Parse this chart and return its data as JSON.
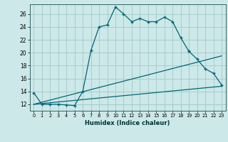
{
  "title": "",
  "xlabel": "Humidex (Indice chaleur)",
  "bg_color": "#cce8e8",
  "grid_color": "#aacccc",
  "line_color": "#006677",
  "xlim": [
    -0.5,
    23.5
  ],
  "ylim": [
    11.0,
    27.5
  ],
  "xticks": [
    0,
    1,
    2,
    3,
    4,
    5,
    6,
    7,
    8,
    9,
    10,
    11,
    12,
    13,
    14,
    15,
    16,
    17,
    18,
    19,
    20,
    21,
    22,
    23
  ],
  "yticks": [
    12,
    14,
    16,
    18,
    20,
    22,
    24,
    26
  ],
  "series": [
    {
      "x": [
        0,
        1,
        2,
        3,
        4,
        5,
        6,
        7,
        8,
        9,
        10,
        11,
        12,
        13,
        14,
        15,
        16,
        17,
        18,
        19
      ],
      "y": [
        13.8,
        12.0,
        12.0,
        12.0,
        11.9,
        11.8,
        14.0,
        20.3,
        24.0,
        24.3,
        27.1,
        26.0,
        24.8,
        25.3,
        24.8,
        24.8,
        25.5,
        24.8,
        22.3,
        20.2
      ]
    },
    {
      "x": [
        19,
        20,
        21,
        22,
        23
      ],
      "y": [
        20.2,
        19.0,
        17.5,
        16.8,
        15.0
      ]
    },
    {
      "x": [
        0,
        23
      ],
      "y": [
        12.0,
        14.8
      ]
    },
    {
      "x": [
        0,
        23
      ],
      "y": [
        12.0,
        19.5
      ]
    }
  ]
}
